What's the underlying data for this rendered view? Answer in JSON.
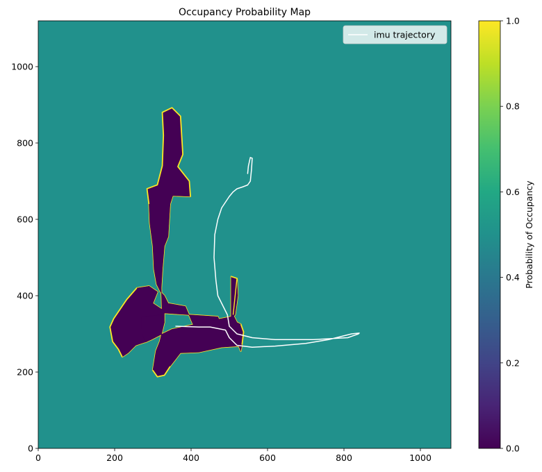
{
  "chart_data": {
    "type": "heatmap",
    "title": "Occupancy Probability Map",
    "xlabel": "",
    "ylabel": "",
    "xlim": [
      0,
      1080
    ],
    "ylim": [
      0,
      1120
    ],
    "x_ticks": [
      0,
      200,
      400,
      600,
      800,
      1000
    ],
    "y_ticks": [
      0,
      200,
      400,
      600,
      800,
      1000
    ],
    "grid": false,
    "background_probability": 0.5,
    "colormap": "viridis",
    "colors": {
      "unknown": "#21918c",
      "free": "#440154",
      "occupied": "#fde725",
      "trajectory": "#ffffff"
    },
    "free_space_regions": [
      {
        "name": "north-corridor",
        "polygon": [
          [
            325,
            880
          ],
          [
            350,
            892
          ],
          [
            372,
            870
          ],
          [
            378,
            770
          ],
          [
            365,
            738
          ],
          [
            395,
            700
          ],
          [
            398,
            660
          ],
          [
            352,
            662
          ],
          [
            345,
            640
          ],
          [
            340,
            555
          ],
          [
            330,
            530
          ],
          [
            325,
            470
          ],
          [
            322,
            420
          ],
          [
            324,
            360
          ],
          [
            320,
            355
          ],
          [
            470,
            345
          ],
          [
            480,
            320
          ],
          [
            430,
            320
          ],
          [
            405,
            325
          ],
          [
            385,
            372
          ],
          [
            340,
            380
          ],
          [
            330,
            400
          ],
          [
            320,
            410
          ],
          [
            310,
            430
          ],
          [
            303,
            470
          ],
          [
            300,
            530
          ],
          [
            292,
            590
          ],
          [
            290,
            640
          ],
          [
            285,
            680
          ],
          [
            312,
            690
          ],
          [
            325,
            740
          ],
          [
            328,
            820
          ]
        ]
      },
      {
        "name": "west-cluster",
        "polygon": [
          [
            258,
            420
          ],
          [
            290,
            425
          ],
          [
            312,
            410
          ],
          [
            300,
            380
          ],
          [
            330,
            360
          ],
          [
            330,
            330
          ],
          [
            310,
            300
          ],
          [
            285,
            280
          ],
          [
            255,
            270
          ],
          [
            235,
            250
          ],
          [
            220,
            240
          ],
          [
            210,
            260
          ],
          [
            195,
            280
          ],
          [
            188,
            318
          ],
          [
            198,
            340
          ],
          [
            215,
            365
          ],
          [
            232,
            390
          ]
        ]
      },
      {
        "name": "main-block",
        "polygon": [
          [
            270,
            345
          ],
          [
            325,
            350
          ],
          [
            330,
            330
          ],
          [
            318,
            280
          ],
          [
            308,
            255
          ],
          [
            300,
            205
          ],
          [
            312,
            188
          ],
          [
            330,
            192
          ],
          [
            345,
            215
          ],
          [
            372,
            250
          ],
          [
            420,
            252
          ],
          [
            480,
            265
          ],
          [
            525,
            268
          ],
          [
            530,
            255
          ],
          [
            533,
            272
          ],
          [
            537,
            305
          ],
          [
            530,
            325
          ],
          [
            520,
            330
          ],
          [
            510,
            350
          ],
          [
            505,
            345
          ],
          [
            440,
            332
          ],
          [
            410,
            325
          ],
          [
            350,
            312
          ],
          [
            325,
            300
          ],
          [
            296,
            285
          ],
          [
            280,
            278
          ],
          [
            272,
            300
          ]
        ]
      },
      {
        "name": "east-spur",
        "polygon": [
          [
            505,
            450
          ],
          [
            520,
            445
          ],
          [
            522,
            400
          ],
          [
            515,
            350
          ],
          [
            505,
            340
          ]
        ]
      }
    ],
    "occupied_boundaries": [
      [
        [
          325,
          880
        ],
        [
          350,
          892
        ],
        [
          372,
          870
        ],
        [
          378,
          770
        ],
        [
          365,
          738
        ],
        [
          395,
          700
        ],
        [
          398,
          660
        ]
      ],
      [
        [
          290,
          640
        ],
        [
          285,
          680
        ],
        [
          312,
          690
        ],
        [
          325,
          740
        ],
        [
          328,
          820
        ],
        [
          325,
          880
        ]
      ],
      [
        [
          258,
          420
        ],
        [
          232,
          390
        ],
        [
          215,
          365
        ],
        [
          198,
          340
        ],
        [
          188,
          318
        ],
        [
          195,
          280
        ],
        [
          210,
          260
        ],
        [
          220,
          240
        ]
      ],
      [
        [
          300,
          205
        ],
        [
          312,
          188
        ],
        [
          330,
          192
        ],
        [
          345,
          215
        ]
      ],
      [
        [
          510,
          350
        ],
        [
          520,
          445
        ],
        [
          505,
          450
        ]
      ],
      [
        [
          533,
          272
        ],
        [
          537,
          305
        ],
        [
          530,
          325
        ]
      ]
    ],
    "series": [
      {
        "name": "imu trajectory",
        "x": [
          360,
          420,
          450,
          490,
          500,
          520,
          560,
          620,
          700,
          760,
          800,
          820,
          840,
          838,
          810,
          720,
          620,
          560,
          520,
          500,
          495,
          480,
          470,
          465,
          460,
          462,
          470,
          480,
          490,
          500,
          510,
          520,
          535,
          548,
          555,
          558,
          560,
          555,
          550,
          548
        ],
        "y": [
          320,
          318,
          318,
          310,
          290,
          270,
          265,
          268,
          275,
          285,
          295,
          300,
          302,
          300,
          290,
          285,
          285,
          290,
          300,
          320,
          350,
          380,
          400,
          440,
          500,
          560,
          600,
          630,
          645,
          660,
          672,
          680,
          685,
          690,
          700,
          730,
          760,
          762,
          740,
          720
        ]
      }
    ],
    "legend": {
      "entries": [
        "imu trajectory"
      ],
      "position": "top-right"
    },
    "colorbar": {
      "label": "Probability of Occupancy",
      "range": [
        0,
        1
      ],
      "ticks": [
        0.0,
        0.2,
        0.4,
        0.6,
        0.8,
        1.0
      ],
      "tick_labels": [
        "0.0",
        "0.2",
        "0.4",
        "0.6",
        "0.8",
        "1.0"
      ],
      "stops": [
        "#440154",
        "#482475",
        "#414487",
        "#355f8d",
        "#2a788e",
        "#21918c",
        "#22a884",
        "#44bf70",
        "#7ad151",
        "#bddf26",
        "#fde725"
      ]
    }
  }
}
